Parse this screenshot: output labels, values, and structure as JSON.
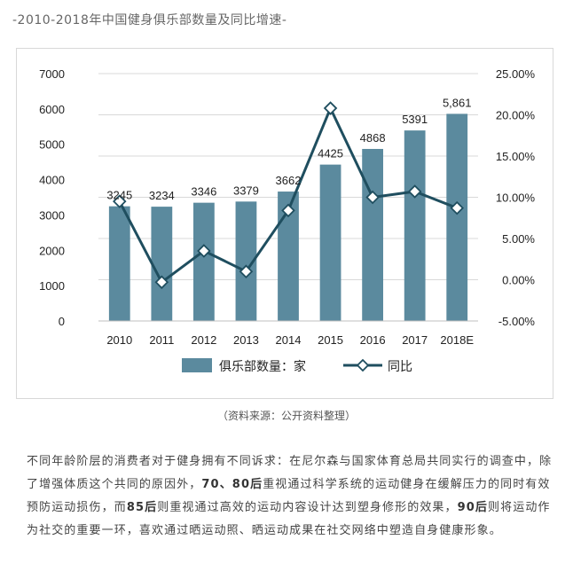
{
  "heading": "-2010-2018年中国健身俱乐部数量及同比增速-",
  "caption": "（资料来源：公开资料整理）",
  "paragraph": {
    "p1": "不同年龄阶层的消费者对于健身拥有不同诉求：在尼尔森与国家体育总局共同实行的调查中，除了增强体质这个共同的原因外，",
    "b1": "70、80后",
    "p2": "重视通过科学系统的运动健身在缓解压力的同时有效预防运动损伤，而",
    "b2": "85后",
    "p3": "则重视通过高效的运动内容设计达到塑身修形的效果，",
    "b3": "90后",
    "p4": "则将运动作为社交的重要一环，喜欢通过晒运动照、晒运动成果在社交网络中塑造自身健康形象。"
  },
  "colors": {
    "bar": "#5b8a9e",
    "line": "#1f4e5f",
    "marker_fill": "#ffffff"
  },
  "chart_data": {
    "type": "bar",
    "categories": [
      "2010",
      "2011",
      "2012",
      "2013",
      "2014",
      "2015",
      "2016",
      "2017",
      "2018E"
    ],
    "series": [
      {
        "name": "俱乐部数量：家",
        "type": "bar",
        "axis": "left",
        "values": [
          3245,
          3234,
          3346,
          3379,
          3662,
          4425,
          4868,
          5391,
          5861
        ],
        "data_labels": [
          "3245",
          "3234",
          "3346",
          "3379",
          "3662",
          "4425",
          "4868",
          "5391",
          "5,861"
        ]
      },
      {
        "name": "同比",
        "type": "line",
        "axis": "right",
        "values": [
          9.5,
          -0.3,
          3.5,
          1.0,
          8.4,
          20.8,
          10.0,
          10.7,
          8.7
        ]
      }
    ],
    "y_left": {
      "min": 0,
      "max": 7000,
      "ticks": [
        "0",
        "1000",
        "2000",
        "3000",
        "4000",
        "5000",
        "6000",
        "7000"
      ]
    },
    "y_right": {
      "min": -5,
      "max": 25,
      "ticks": [
        "-5.00%",
        "0.00%",
        "5.00%",
        "10.00%",
        "15.00%",
        "20.00%",
        "25.00%"
      ]
    },
    "grid": true,
    "legend_position": "bottom"
  }
}
